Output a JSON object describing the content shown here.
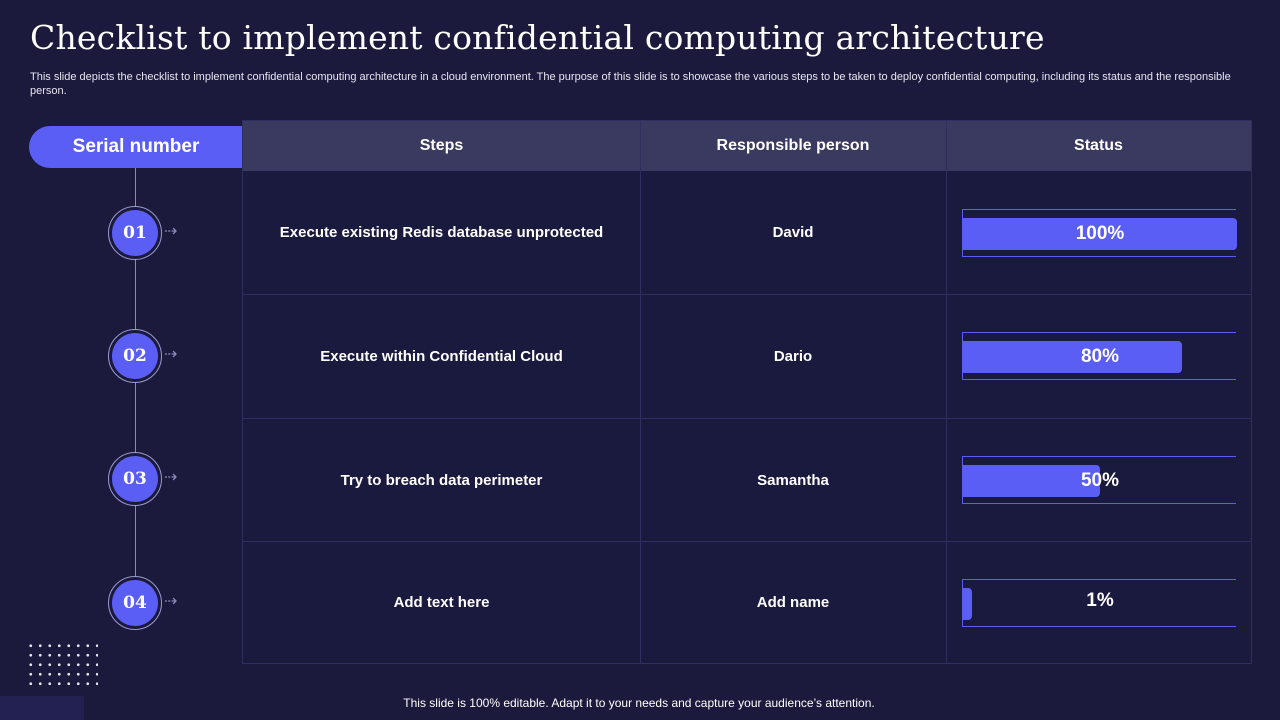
{
  "title": "Checklist to implement confidential computing architecture",
  "subtitle": "This slide depicts the checklist to implement confidential computing architecture in a cloud environment. The purpose of this slide is to showcase the various steps to be taken to  deploy confidential computing, including its status and the responsible person.",
  "serial_header": "Serial number",
  "table": {
    "headers": [
      "Steps",
      "Responsible person",
      "Status"
    ],
    "rows": [
      {
        "num": "01",
        "step": "Execute existing Redis database unprotected",
        "person": "David",
        "status": "100%",
        "progress": 100
      },
      {
        "num": "02",
        "step": "Execute within Confidential Cloud",
        "person": "Dario",
        "status": "80%",
        "progress": 80
      },
      {
        "num": "03",
        "step": "Try to breach data perimeter",
        "person": "Samantha",
        "status": "50%",
        "progress": 50
      },
      {
        "num": "04",
        "step": "Add  text here",
        "person": "Add  name",
        "status": "1%",
        "progress": 1
      }
    ]
  },
  "footer": "This slide is 100% editable. Adapt it to your needs and capture your audience’s attention.",
  "icons": {
    "arrow": "arrow-right-icon"
  },
  "colors": {
    "background": "#1b1a3c",
    "accent": "#5b5ef4",
    "header": "#3a3a60"
  }
}
